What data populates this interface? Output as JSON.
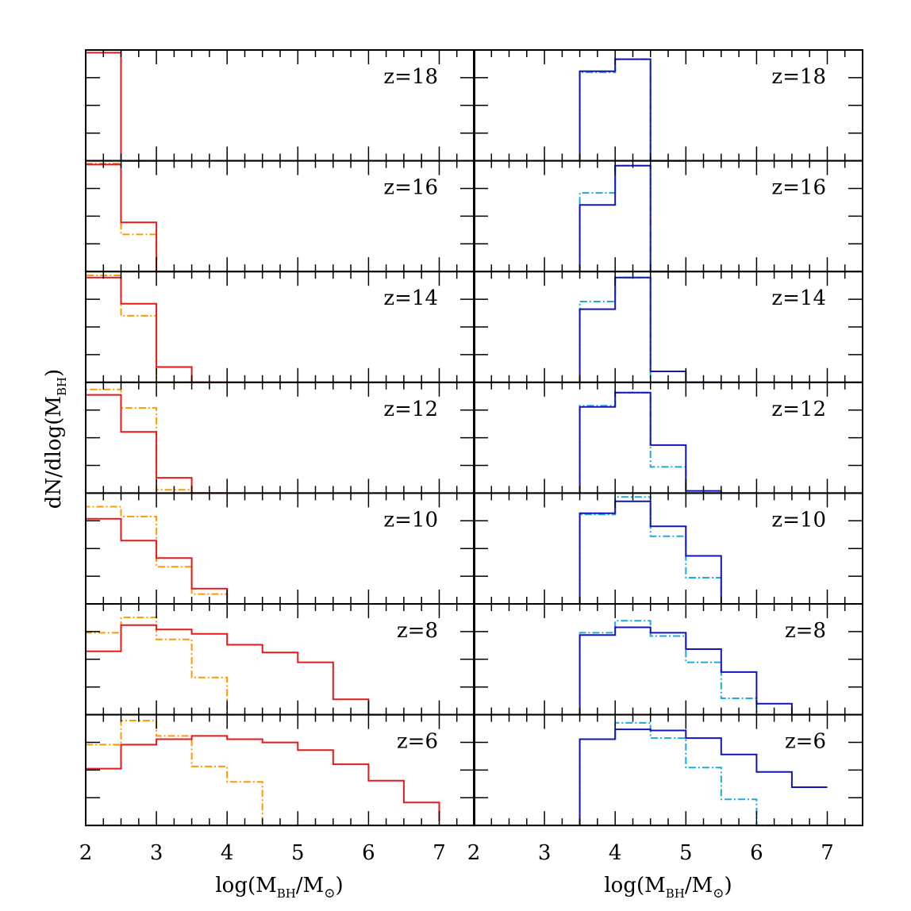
{
  "chart_data": {
    "type": "line",
    "layout": "7 rows x 2 columns of step histograms, shared y label",
    "ylabel": "dN/dlog(M_BH)",
    "ylabel_parts": {
      "main": "dN/dlog(M",
      "sub": "BH",
      "close": ")"
    },
    "xlabel_parts": {
      "main": "log(M",
      "sub1": "BH",
      "mid": "/M",
      "sub2": "⊙",
      "close": ")"
    },
    "xlim": [
      2,
      7.5
    ],
    "ylim": [
      0,
      1
    ],
    "x_ticks": [
      2,
      3,
      4,
      5,
      6,
      7
    ],
    "x_tick_labels": [
      "2",
      "3",
      "4",
      "5",
      "6",
      "7"
    ],
    "colors": {
      "red": "#e41a1c",
      "orange": "#ff9900",
      "blue": "#1515b5",
      "cyan": "#1ea8e0"
    },
    "panels": [
      {
        "column": "left",
        "redshifts": [
          "z=18",
          "z=16",
          "z=14",
          "z=12",
          "z=10",
          "z=8",
          "z=6"
        ],
        "series": [
          {
            "name": "solid red",
            "color": "#e41a1c",
            "dash": false,
            "bin_edges": [
              2,
              2.5,
              3,
              3.5,
              4,
              4.5,
              5,
              5.5,
              6,
              6.5,
              7
            ],
            "values_by_redshift": [
              [
                0.99,
                0
              ],
              [
                0.98,
                0.45,
                0
              ],
              [
                0.96,
                0.72,
                0.14,
                0
              ],
              [
                0.9,
                0.56,
                0.14,
                0
              ],
              [
                0.78,
                0.58,
                0.42,
                0.14,
                0
              ],
              [
                0.58,
                0.82,
                0.78,
                0.74,
                0.64,
                0.57,
                0.48,
                0.14,
                0
              ],
              [
                0.52,
                0.74,
                0.79,
                0.82,
                0.79,
                0.76,
                0.69,
                0.56,
                0.41,
                0.21,
                0.04
              ]
            ]
          },
          {
            "name": "dash-dot orange",
            "color": "#ff9900",
            "dash": true,
            "bin_edges": [
              2,
              2.5,
              3,
              3.5,
              4,
              4.5,
              5
            ],
            "values_by_redshift": [
              [
                0.99,
                0
              ],
              [
                0.99,
                0.34,
                0
              ],
              [
                0.98,
                0.61,
                0
              ],
              [
                0.95,
                0.78,
                0.03,
                0
              ],
              [
                0.89,
                0.8,
                0.34,
                0.09,
                0
              ],
              [
                0.75,
                0.89,
                0.69,
                0.34,
                0
              ],
              [
                0.74,
                0.96,
                0.82,
                0.54,
                0.4,
                0
              ]
            ]
          }
        ]
      },
      {
        "column": "right",
        "redshifts": [
          "z=18",
          "z=16",
          "z=14",
          "z=12",
          "z=10",
          "z=8",
          "z=6"
        ],
        "series": [
          {
            "name": "solid blue",
            "color": "#1515b5",
            "dash": false,
            "bin_edges": [
              3.5,
              4,
              4.5,
              5,
              5.5,
              6,
              6.5,
              7
            ],
            "values_by_redshift": [
              [
                0.82,
                0.93,
                0
              ],
              [
                0.61,
                0.97,
                0
              ],
              [
                0.67,
                0.96,
                0.1,
                0
              ],
              [
                0.79,
                0.92,
                0.44,
                0.02,
                0
              ],
              [
                0.83,
                0.94,
                0.71,
                0.44,
                0
              ],
              [
                0.73,
                0.8,
                0.75,
                0.6,
                0.39,
                0.1,
                0
              ],
              [
                0.79,
                0.88,
                0.87,
                0.8,
                0.65,
                0.49,
                0.35
              ]
            ]
          },
          {
            "name": "dash-dot cyan",
            "color": "#1ea8e0",
            "dash": true,
            "bin_edges": [
              3.5,
              4,
              4.5,
              5,
              5.5,
              6,
              6.5
            ],
            "values_by_redshift": [
              [
                0.81,
                0.93,
                0
              ],
              [
                0.72,
                0.97,
                0
              ],
              [
                0.74,
                0.96,
                0
              ],
              [
                0.8,
                0.92,
                0.24,
                0
              ],
              [
                0.82,
                0.98,
                0.62,
                0.24,
                0
              ],
              [
                0.75,
                0.86,
                0.72,
                0.48,
                0.15,
                0
              ],
              [
                0.79,
                0.94,
                0.8,
                0.53,
                0.24,
                0
              ]
            ]
          }
        ]
      }
    ]
  }
}
